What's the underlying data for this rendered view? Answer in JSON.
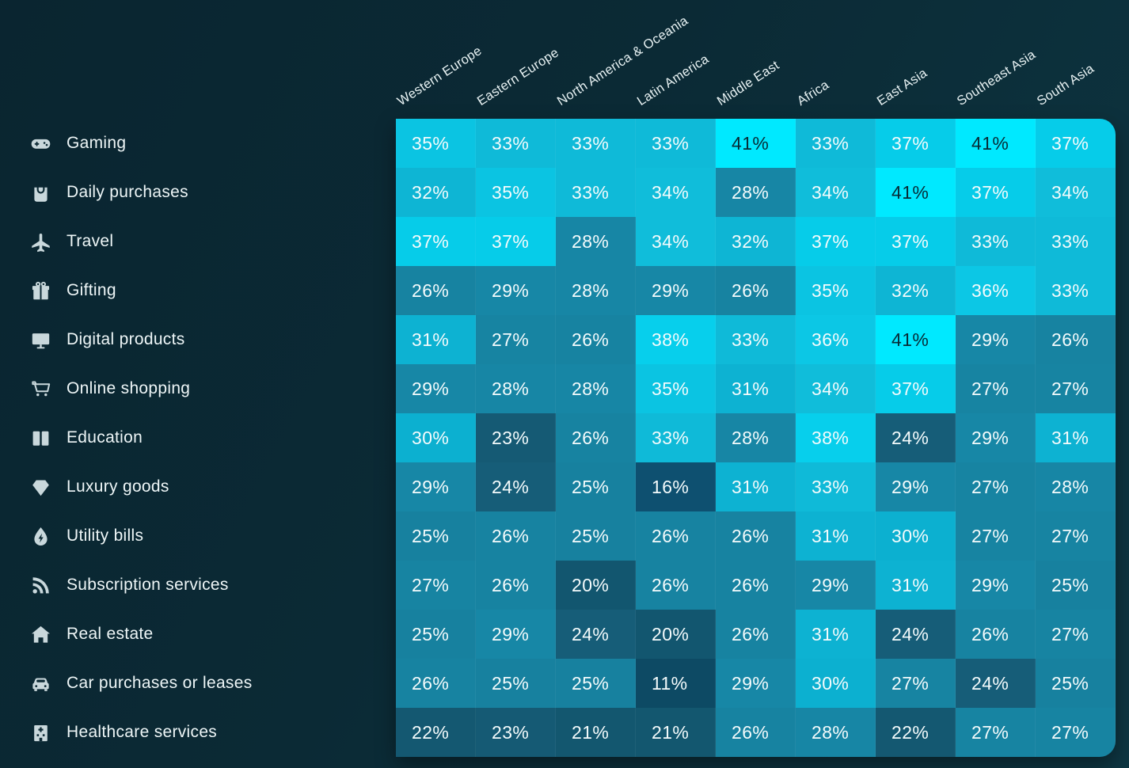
{
  "page": {
    "background_top": "#0a2530",
    "background_bottom": "#0e3642"
  },
  "chart_data": {
    "type": "heatmap",
    "title": "",
    "unit": "%",
    "columns": [
      "Western Europe",
      "Eastern Europe",
      "North America & Oceania",
      "Latin America",
      "Middle East",
      "Africa",
      "East Asia",
      "Southeast Asia",
      "South Asia"
    ],
    "rows": [
      {
        "label": "Gaming",
        "icon": "gamepad-icon",
        "values": [
          35,
          33,
          33,
          33,
          41,
          33,
          37,
          41,
          37
        ]
      },
      {
        "label": "Daily purchases",
        "icon": "shopping-bag-icon",
        "values": [
          32,
          35,
          33,
          34,
          28,
          34,
          41,
          37,
          34
        ]
      },
      {
        "label": "Travel",
        "icon": "airplane-icon",
        "values": [
          37,
          37,
          28,
          34,
          32,
          37,
          37,
          33,
          33
        ]
      },
      {
        "label": "Gifting",
        "icon": "gift-icon",
        "values": [
          26,
          29,
          28,
          29,
          26,
          35,
          32,
          36,
          33
        ]
      },
      {
        "label": "Digital products",
        "icon": "monitor-icon",
        "values": [
          31,
          27,
          26,
          38,
          33,
          36,
          41,
          29,
          26
        ]
      },
      {
        "label": "Online shopping",
        "icon": "shopping-cart-icon",
        "values": [
          29,
          28,
          28,
          35,
          31,
          34,
          37,
          27,
          27
        ]
      },
      {
        "label": "Education",
        "icon": "open-book-icon",
        "values": [
          30,
          23,
          26,
          33,
          28,
          38,
          24,
          29,
          31
        ]
      },
      {
        "label": "Luxury goods",
        "icon": "diamond-icon",
        "values": [
          29,
          24,
          25,
          16,
          31,
          33,
          29,
          27,
          28
        ]
      },
      {
        "label": "Utility bills",
        "icon": "utility-drop-icon",
        "values": [
          25,
          26,
          25,
          26,
          26,
          31,
          30,
          27,
          27
        ]
      },
      {
        "label": "Subscription services",
        "icon": "rss-icon",
        "values": [
          27,
          26,
          20,
          26,
          26,
          29,
          31,
          29,
          25
        ]
      },
      {
        "label": "Real estate",
        "icon": "house-icon",
        "values": [
          25,
          29,
          24,
          20,
          26,
          31,
          24,
          26,
          27
        ]
      },
      {
        "label": "Car purchases or leases",
        "icon": "car-icon",
        "values": [
          26,
          25,
          25,
          11,
          29,
          30,
          27,
          24,
          25
        ]
      },
      {
        "label": "Healthcare services",
        "icon": "hospital-icon",
        "values": [
          22,
          23,
          21,
          21,
          26,
          28,
          22,
          27,
          27
        ]
      }
    ],
    "value_colors": {
      "11": "#0d4a64",
      "16": "#0e5070",
      "20": "#12566f",
      "21": "#13576f",
      "22": "#145871",
      "23": "#155a74",
      "24": "#165d78",
      "25": "#17819f",
      "26": "#1783a1",
      "27": "#1784a2",
      "28": "#1786a5",
      "29": "#1787a6",
      "30": "#0cb0d0",
      "31": "#0db2d2",
      "32": "#0eb5d4",
      "33": "#0fbad8",
      "34": "#10bdda",
      "35": "#0bc4e2",
      "36": "#0cc7e5",
      "37": "#06cce9",
      "38": "#07cfec",
      "41": "#00e9ff"
    },
    "text_color_default": "#f4fbfc",
    "text_color_on_bright": "#072b36",
    "bright_text_threshold": 41,
    "legend_position": "none",
    "grid": "off"
  }
}
